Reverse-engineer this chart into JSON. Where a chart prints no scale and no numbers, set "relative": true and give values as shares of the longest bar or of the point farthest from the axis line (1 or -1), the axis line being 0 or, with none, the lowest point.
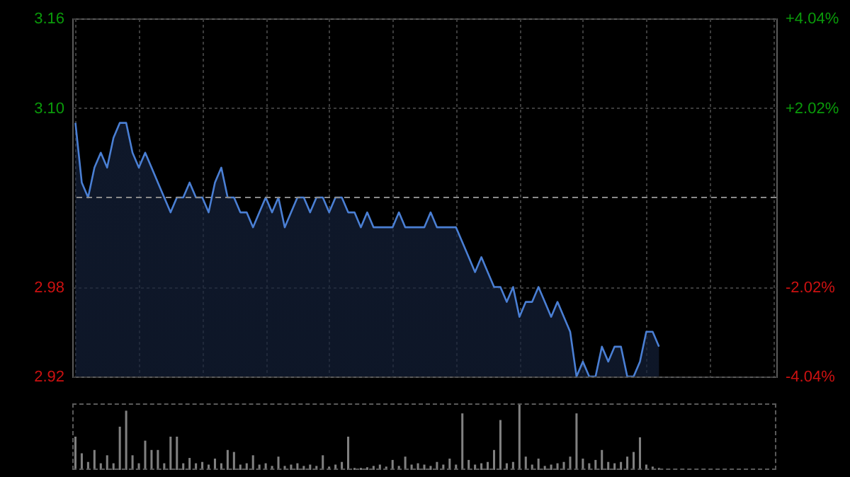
{
  "chart_data": [
    {
      "type": "area",
      "categories": [
        null,
        null,
        null,
        null,
        null,
        null,
        null,
        null,
        null,
        null,
        null,
        null,
        null,
        null,
        null,
        null,
        null,
        null,
        null,
        null,
        null,
        null,
        null,
        null,
        null,
        null,
        null,
        null,
        null,
        null,
        null,
        null,
        null,
        null,
        null,
        null,
        null,
        null,
        null,
        null,
        null,
        null,
        null,
        null,
        null,
        null,
        null,
        null,
        null,
        null,
        null,
        null,
        null,
        null,
        null,
        null,
        null,
        null,
        null,
        null,
        null,
        null,
        null,
        null,
        null,
        null,
        null,
        null,
        null,
        null,
        null,
        null,
        null,
        null,
        null,
        null,
        null,
        null,
        null,
        null,
        null,
        null,
        null,
        null,
        null,
        null,
        null,
        null,
        null,
        null,
        null,
        null,
        null,
        null,
        null,
        null,
        null,
        null,
        null,
        null,
        null,
        null,
        null,
        null,
        null,
        null,
        null,
        null,
        null,
        null,
        null
      ],
      "series": [
        {
          "color": "#4a7fd4",
          "values": [
            3.09,
            3.05,
            3.04,
            3.06,
            3.07,
            3.06,
            3.08,
            3.09,
            3.09,
            3.07,
            3.06,
            3.07,
            3.06,
            3.05,
            3.04,
            3.03,
            3.04,
            3.04,
            3.05,
            3.04,
            3.04,
            3.03,
            3.05,
            3.06,
            3.04,
            3.04,
            3.03,
            3.03,
            3.02,
            3.03,
            3.04,
            3.03,
            3.04,
            3.02,
            3.03,
            3.04,
            3.04,
            3.03,
            3.04,
            3.04,
            3.03,
            3.04,
            3.04,
            3.03,
            3.03,
            3.02,
            3.03,
            3.02,
            3.02,
            3.02,
            3.02,
            3.03,
            3.02,
            3.02,
            3.02,
            3.02,
            3.03,
            3.02,
            3.02,
            3.02,
            3.02,
            3.01,
            3.0,
            2.99,
            3.0,
            2.99,
            2.98,
            2.98,
            2.97,
            2.98,
            2.96,
            2.97,
            2.97,
            2.98,
            2.97,
            2.96,
            2.97,
            2.96,
            2.95,
            2.92,
            2.93,
            2.92,
            2.92,
            2.94,
            2.93,
            2.94,
            2.94,
            2.92,
            2.92,
            2.93,
            2.95,
            2.95,
            2.94,
            null,
            null,
            null,
            null,
            null,
            null,
            null,
            null,
            null,
            null,
            null,
            null,
            null,
            null,
            null,
            null,
            null,
            null
          ]
        }
      ],
      "ylim": [
        2.92,
        3.16
      ],
      "yticks": [
        {
          "value": 3.16,
          "label": "3.16"
        },
        {
          "value": 3.1,
          "label": "3.10"
        },
        {
          "value": 2.98,
          "label": "2.98"
        },
        {
          "value": 2.92,
          "label": "2.92"
        }
      ],
      "y2lim": [
        -4.04,
        4.04
      ],
      "y2ticks": [
        {
          "value": 4.04,
          "label": "+4.04%"
        },
        {
          "value": 2.02,
          "label": "+2.02%"
        },
        {
          "value": -2.02,
          "label": "-2.02%"
        },
        {
          "value": -4.04,
          "label": "-4.04%"
        }
      ],
      "ref_lines": [
        {
          "axis": "y",
          "value": 3.04,
          "line_style": "dashed"
        }
      ],
      "grid": true,
      "tick_labels": "y"
    },
    {
      "type": "bar",
      "relative": true,
      "tick_labels": false,
      "categories": [
        null,
        null,
        null,
        null,
        null,
        null,
        null,
        null,
        null,
        null,
        null,
        null,
        null,
        null,
        null,
        null,
        null,
        null,
        null,
        null,
        null,
        null,
        null,
        null,
        null,
        null,
        null,
        null,
        null,
        null,
        null,
        null,
        null,
        null,
        null,
        null,
        null,
        null,
        null,
        null,
        null,
        null,
        null,
        null,
        null,
        null,
        null,
        null,
        null,
        null,
        null,
        null,
        null,
        null,
        null,
        null,
        null,
        null,
        null,
        null,
        null,
        null,
        null,
        null,
        null,
        null,
        null,
        null,
        null,
        null,
        null,
        null,
        null,
        null,
        null,
        null,
        null,
        null,
        null,
        null,
        null,
        null,
        null,
        null,
        null,
        null,
        null,
        null,
        null,
        null,
        null,
        null,
        null,
        null,
        null,
        null,
        null,
        null,
        null,
        null,
        null,
        null,
        null,
        null,
        null,
        null,
        null,
        null,
        null,
        null,
        null
      ],
      "series": [
        {
          "color": "#808080",
          "values": [
            0.5,
            0.25,
            0.12,
            0.3,
            0.1,
            0.22,
            0.1,
            0.65,
            0.89,
            0.22,
            0.1,
            0.44,
            0.3,
            0.3,
            0.1,
            0.5,
            0.5,
            0.1,
            0.18,
            0.1,
            0.12,
            0.08,
            0.17,
            0.1,
            0.3,
            0.27,
            0.08,
            0.1,
            0.22,
            0.08,
            0.1,
            0.06,
            0.2,
            0.06,
            0.08,
            0.1,
            0.06,
            0.08,
            0.06,
            0.22,
            0.05,
            0.08,
            0.12,
            0.5,
            0.03,
            0.03,
            0.04,
            0.06,
            0.08,
            0.05,
            0.15,
            0.06,
            0.2,
            0.08,
            0.1,
            0.08,
            0.06,
            0.12,
            0.08,
            0.17,
            0.08,
            0.85,
            0.15,
            0.08,
            0.1,
            0.12,
            0.3,
            0.75,
            0.1,
            0.12,
            1,
            0.2,
            0.08,
            0.17,
            0.06,
            0.08,
            0.1,
            0.12,
            0.2,
            0.85,
            0.17,
            0.1,
            0.15,
            0.3,
            0.12,
            0.1,
            0.12,
            0.2,
            0.27,
            0.49,
            0.08,
            0.05,
            0.03,
            null,
            null,
            null,
            null,
            null,
            null,
            null,
            null,
            null,
            null,
            null,
            null,
            null,
            null,
            null,
            null,
            null,
            null
          ]
        }
      ]
    }
  ]
}
